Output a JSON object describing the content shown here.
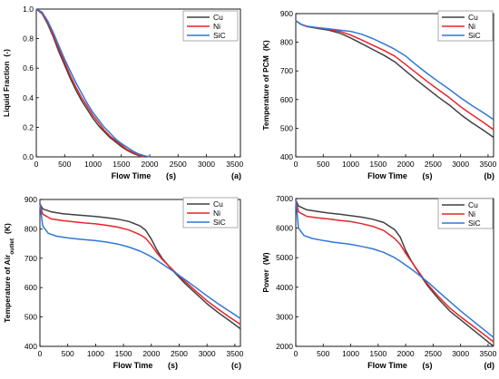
{
  "chart_data": [
    {
      "type": "line",
      "panel_label": "(a)",
      "xlabel": "Flow Time",
      "xlabel_unit": "(s)",
      "ylabel": "Liquid Fraction",
      "ylabel_sub": "",
      "ylabel_unit": "(-)",
      "xlim": [
        0,
        3600
      ],
      "ylim": [
        0,
        1.0
      ],
      "xticks": [
        0,
        500,
        1000,
        1500,
        2000,
        2500,
        3000,
        3500
      ],
      "yticks": [
        0.0,
        0.2,
        0.4,
        0.6,
        0.8,
        1.0
      ],
      "ytick_labels": [
        "0.0",
        "0.2",
        "0.4",
        "0.6",
        "0.8",
        "1.0"
      ],
      "legend": "top-right",
      "grid": false,
      "series": [
        {
          "name": "Cu",
          "color": "#404040",
          "x": [
            0,
            100,
            200,
            300,
            400,
            500,
            600,
            700,
            800,
            900,
            1000,
            1100,
            1200,
            1300,
            1400,
            1500,
            1600,
            1700,
            1800,
            1850
          ],
          "y": [
            1.0,
            0.97,
            0.9,
            0.81,
            0.71,
            0.62,
            0.53,
            0.45,
            0.38,
            0.32,
            0.26,
            0.21,
            0.17,
            0.13,
            0.1,
            0.07,
            0.045,
            0.025,
            0.01,
            0.0
          ]
        },
        {
          "name": "Ni",
          "color": "#e8242a",
          "x": [
            0,
            100,
            200,
            300,
            400,
            500,
            600,
            700,
            800,
            900,
            1000,
            1100,
            1200,
            1300,
            1400,
            1500,
            1600,
            1700,
            1800,
            1900
          ],
          "y": [
            1.0,
            0.97,
            0.91,
            0.82,
            0.73,
            0.64,
            0.55,
            0.47,
            0.4,
            0.34,
            0.28,
            0.23,
            0.18,
            0.14,
            0.11,
            0.08,
            0.05,
            0.03,
            0.012,
            0.0
          ]
        },
        {
          "name": "SiC",
          "color": "#2f78d6",
          "x": [
            0,
            100,
            200,
            300,
            400,
            500,
            600,
            700,
            800,
            900,
            1000,
            1100,
            1200,
            1300,
            1400,
            1500,
            1600,
            1700,
            1800,
            1900,
            2000
          ],
          "y": [
            1.0,
            0.98,
            0.92,
            0.84,
            0.75,
            0.66,
            0.58,
            0.5,
            0.43,
            0.36,
            0.3,
            0.25,
            0.2,
            0.16,
            0.12,
            0.09,
            0.065,
            0.04,
            0.02,
            0.008,
            0.0
          ]
        }
      ]
    },
    {
      "type": "line",
      "panel_label": "(b)",
      "xlabel": "Flow Time",
      "xlabel_unit": "(s)",
      "ylabel": "Temperature of PCM",
      "ylabel_sub": "",
      "ylabel_unit": "(K)",
      "xlim": [
        0,
        3600
      ],
      "ylim": [
        400,
        900
      ],
      "xticks": [
        0,
        500,
        1000,
        1500,
        2000,
        2500,
        3000,
        3500
      ],
      "yticks": [
        400,
        500,
        600,
        700,
        800,
        900
      ],
      "ytick_labels": [
        "400",
        "500",
        "600",
        "700",
        "800",
        "900"
      ],
      "legend": "top-right",
      "grid": false,
      "series": [
        {
          "name": "Cu",
          "color": "#404040",
          "x": [
            0,
            100,
            200,
            400,
            600,
            800,
            1000,
            1200,
            1400,
            1600,
            1800,
            2000,
            2200,
            2400,
            2600,
            2800,
            3000,
            3200,
            3400,
            3600
          ],
          "y": [
            875,
            862,
            855,
            848,
            842,
            832,
            815,
            795,
            775,
            755,
            732,
            700,
            668,
            638,
            608,
            580,
            548,
            520,
            495,
            468
          ]
        },
        {
          "name": "Ni",
          "color": "#e8242a",
          "x": [
            0,
            100,
            200,
            400,
            600,
            800,
            1000,
            1200,
            1400,
            1600,
            1800,
            2000,
            2200,
            2400,
            2600,
            2800,
            3000,
            3200,
            3400,
            3600
          ],
          "y": [
            875,
            862,
            855,
            850,
            845,
            838,
            825,
            808,
            790,
            772,
            752,
            722,
            692,
            662,
            634,
            606,
            575,
            548,
            522,
            495
          ]
        },
        {
          "name": "SiC",
          "color": "#2f78d6",
          "x": [
            0,
            100,
            200,
            400,
            600,
            800,
            1000,
            1200,
            1400,
            1600,
            1800,
            2000,
            2200,
            2400,
            2600,
            2800,
            3000,
            3200,
            3400,
            3600
          ],
          "y": [
            875,
            862,
            856,
            851,
            847,
            842,
            838,
            828,
            813,
            795,
            776,
            752,
            720,
            690,
            662,
            635,
            606,
            580,
            556,
            530
          ]
        }
      ]
    },
    {
      "type": "line",
      "panel_label": "(c)",
      "xlabel": "Flow Time",
      "xlabel_unit": "(s)",
      "ylabel": "Temperature of Air",
      "ylabel_sub": "outlet",
      "ylabel_unit": "(K)",
      "xlim": [
        0,
        3600
      ],
      "ylim": [
        400,
        900
      ],
      "xticks": [
        0,
        500,
        1000,
        1500,
        2000,
        2500,
        3000,
        3500
      ],
      "yticks": [
        400,
        500,
        600,
        700,
        800,
        900
      ],
      "ytick_labels": [
        "400",
        "500",
        "600",
        "700",
        "800",
        "900"
      ],
      "legend": "top-right",
      "grid": false,
      "series": [
        {
          "name": "Cu",
          "color": "#404040",
          "x": [
            0,
            50,
            200,
            400,
            600,
            800,
            1000,
            1200,
            1400,
            1600,
            1800,
            1900,
            2000,
            2100,
            2200,
            2400,
            2600,
            2800,
            3000,
            3200,
            3400,
            3600
          ],
          "y": [
            885,
            868,
            858,
            852,
            848,
            845,
            842,
            838,
            833,
            825,
            810,
            795,
            765,
            728,
            698,
            655,
            615,
            580,
            545,
            515,
            488,
            460
          ]
        },
        {
          "name": "Ni",
          "color": "#e8242a",
          "x": [
            0,
            50,
            200,
            400,
            600,
            800,
            1000,
            1200,
            1400,
            1600,
            1800,
            1900,
            2000,
            2100,
            2200,
            2400,
            2600,
            2800,
            3000,
            3200,
            3400,
            3600
          ],
          "y": [
            885,
            850,
            834,
            828,
            824,
            820,
            817,
            812,
            806,
            796,
            780,
            768,
            745,
            718,
            695,
            658,
            622,
            588,
            555,
            527,
            500,
            475
          ]
        },
        {
          "name": "SiC",
          "color": "#2f78d6",
          "x": [
            0,
            50,
            150,
            300,
            500,
            700,
            1000,
            1200,
            1400,
            1600,
            1800,
            1900,
            2000,
            2100,
            2200,
            2400,
            2600,
            2800,
            3000,
            3200,
            3400,
            3600
          ],
          "y": [
            885,
            810,
            785,
            775,
            769,
            765,
            760,
            755,
            748,
            738,
            724,
            715,
            705,
            693,
            680,
            655,
            628,
            600,
            572,
            545,
            520,
            495
          ]
        }
      ]
    },
    {
      "type": "line",
      "panel_label": "(d)",
      "xlabel": "Flow Time",
      "xlabel_unit": "(s)",
      "ylabel": "Power",
      "ylabel_sub": "",
      "ylabel_unit": "(W)",
      "xlim": [
        0,
        3600
      ],
      "ylim": [
        2000,
        7000
      ],
      "xticks": [
        0,
        500,
        1000,
        1500,
        2000,
        2500,
        3000,
        3500
      ],
      "yticks": [
        2000,
        3000,
        4000,
        5000,
        6000,
        7000
      ],
      "ytick_labels": [
        "2000",
        "3000",
        "4000",
        "5000",
        "6000",
        "7000"
      ],
      "legend": "top-right",
      "grid": false,
      "series": [
        {
          "name": "Cu",
          "color": "#404040",
          "x": [
            0,
            50,
            200,
            400,
            600,
            800,
            1000,
            1200,
            1400,
            1600,
            1800,
            1900,
            2000,
            2100,
            2200,
            2400,
            2600,
            2800,
            3000,
            3200,
            3400,
            3600
          ],
          "y": [
            6950,
            6750,
            6620,
            6560,
            6510,
            6470,
            6420,
            6370,
            6300,
            6190,
            5950,
            5700,
            5250,
            4900,
            4600,
            4050,
            3600,
            3200,
            2900,
            2600,
            2300,
            2000
          ]
        },
        {
          "name": "Ni",
          "color": "#e8242a",
          "x": [
            0,
            50,
            200,
            400,
            600,
            800,
            1000,
            1200,
            1400,
            1600,
            1800,
            1900,
            2000,
            2100,
            2200,
            2400,
            2600,
            2800,
            3000,
            3200,
            3400,
            3600
          ],
          "y": [
            6950,
            6550,
            6400,
            6350,
            6310,
            6260,
            6220,
            6150,
            6060,
            5920,
            5650,
            5450,
            5150,
            4880,
            4620,
            4100,
            3680,
            3300,
            3000,
            2720,
            2440,
            2150
          ]
        },
        {
          "name": "SiC",
          "color": "#2f78d6",
          "x": [
            0,
            50,
            150,
            300,
            500,
            700,
            1000,
            1200,
            1400,
            1600,
            1800,
            1900,
            2000,
            2100,
            2200,
            2400,
            2600,
            2800,
            3000,
            3200,
            3400,
            3600
          ],
          "y": [
            6950,
            6000,
            5750,
            5650,
            5580,
            5520,
            5450,
            5380,
            5300,
            5180,
            5000,
            4880,
            4750,
            4620,
            4480,
            4180,
            3850,
            3520,
            3200,
            2900,
            2600,
            2300
          ]
        }
      ]
    }
  ]
}
